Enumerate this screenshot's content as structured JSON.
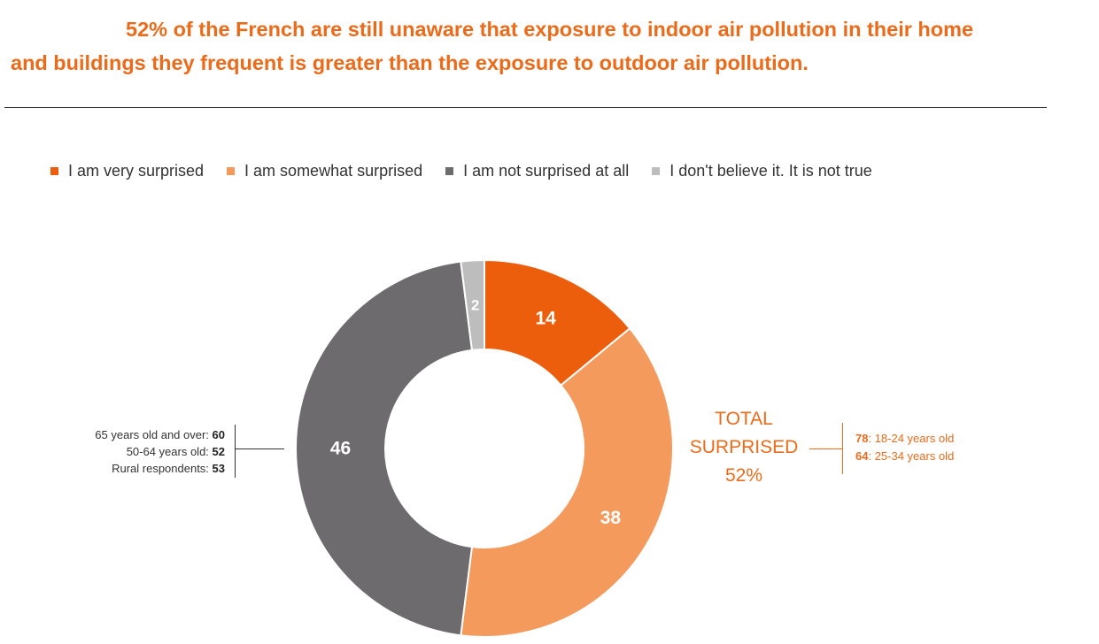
{
  "title": {
    "line1": "52% of the French are still unaware that exposure to indoor air pollution in their home",
    "line2": "and buildings they frequent is greater than the exposure to outdoor air pollution."
  },
  "chart_data": {
    "type": "pie",
    "donut": true,
    "title": "52% of the French are still unaware that exposure to indoor air pollution in their home and buildings they frequent is greater than the exposure to outdoor air pollution.",
    "legend_position": "top",
    "slices": [
      {
        "label": "I am very surprised",
        "value": 14,
        "color": "#ec5e0b"
      },
      {
        "label": "I am somewhat surprised",
        "value": 38,
        "color": "#f39a5c"
      },
      {
        "label": "I am not surprised at all",
        "value": 46,
        "color": "#6d6b6d"
      },
      {
        "label": "I don't believe it. It is not true",
        "value": 2,
        "color": "#bdbdbd"
      }
    ]
  },
  "total_surprised": {
    "line1": "TOTAL",
    "line2": "SURPRISED",
    "line3": "52%"
  },
  "not_surprised_breakdown": [
    {
      "label": "65 years old and over: ",
      "value": "60"
    },
    {
      "label": "50-64 years old: ",
      "value": "52"
    },
    {
      "label": "Rural respondents: ",
      "value": "53"
    }
  ],
  "surprised_breakdown": [
    {
      "value": "78",
      "label": ": 18-24 years old"
    },
    {
      "value": "64",
      "label": ": 25-34 years old"
    }
  ],
  "colors": {
    "accent": "#ec6b1a",
    "text": "#333333"
  }
}
